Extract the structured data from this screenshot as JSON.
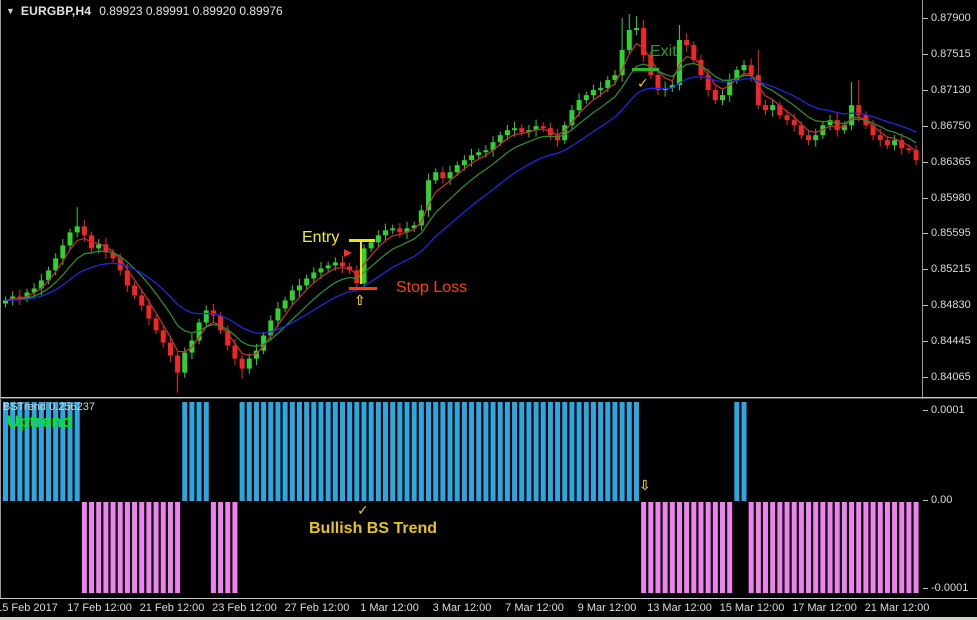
{
  "header": {
    "dropdown_icon": "▼",
    "symbol_period": "EURGBP,H4",
    "quotes": "0.89923 0.89991 0.89920 0.89976"
  },
  "annotations": {
    "entry_label": "Entry",
    "stop_loss_label": "Stop Loss",
    "exit_label": "Exit",
    "check_icon": "✓",
    "buy_arrow_icon": "⇧",
    "sell_arrow_icon": "⇩",
    "bullish_label": "Bullish BS Trend"
  },
  "indicator_panel": {
    "name": "BSTrend",
    "value": "0.256237",
    "trend_label": "Uptrend",
    "scale_ticks": [
      "0.0001",
      "0.00",
      "-0.0001"
    ]
  },
  "chart_data": {
    "type": "candlestick",
    "title": "EURGBP H4 candlestick chart with 3 moving averages and BSTrend histogram",
    "price_ticks": [
      "0.87900",
      "0.87515",
      "0.87130",
      "0.86750",
      "0.86365",
      "0.85980",
      "0.85595",
      "0.85215",
      "0.84830",
      "0.84445",
      "0.84065"
    ],
    "time_labels": [
      "15 Feb 2017",
      "17 Feb 12:00",
      "21 Feb 12:00",
      "23 Feb 12:00",
      "27 Feb 12:00",
      "1 Mar 12:00",
      "3 Mar 12:00",
      "7 Mar 12:00",
      "9 Mar 12:00",
      "13 Mar 12:00",
      "15 Mar 12:00",
      "17 Mar 12:00",
      "21 Mar 12:00"
    ],
    "first_open": 0.8485,
    "closes": [
      0.84883,
      0.84925,
      0.84904,
      0.84968,
      0.85011,
      0.85097,
      0.85204,
      0.85332,
      0.85471,
      0.8561,
      0.85674,
      0.85578,
      0.85439,
      0.85482,
      0.85396,
      0.85332,
      0.85204,
      0.85043,
      0.84936,
      0.84829,
      0.8469,
      0.84562,
      0.84433,
      0.84294,
      0.84112,
      0.84326,
      0.84455,
      0.84647,
      0.84776,
      0.84722,
      0.84562,
      0.84401,
      0.84262,
      0.84155,
      0.84262,
      0.84348,
      0.84508,
      0.84669,
      0.84797,
      0.84883,
      0.8499,
      0.85043,
      0.85118,
      0.85182,
      0.85225,
      0.85257,
      0.85289,
      0.85246,
      0.85204,
      0.85065,
      0.85439,
      0.85503,
      0.85578,
      0.85632,
      0.85653,
      0.8561,
      0.85653,
      0.85685,
      0.85846,
      0.86167,
      0.86252,
      0.86188,
      0.86252,
      0.86327,
      0.86381,
      0.86434,
      0.86466,
      0.86488,
      0.86573,
      0.86648,
      0.86702,
      0.86723,
      0.8668,
      0.86702,
      0.86744,
      0.86723,
      0.86648,
      0.86595,
      0.86755,
      0.86916,
      0.87023,
      0.87076,
      0.8713,
      0.87151,
      0.87237,
      0.8729,
      0.87558,
      0.87772,
      0.87793,
      0.87504,
      0.8729,
      0.8713,
      0.87151,
      0.87183,
      0.87665,
      0.87611,
      0.87451,
      0.8729,
      0.8713,
      0.87023,
      0.87076,
      0.87237,
      0.87344,
      0.87397,
      0.8729,
      0.86969,
      0.86916,
      0.86969,
      0.86862,
      0.86809,
      0.86755,
      0.86648,
      0.86595,
      0.86648,
      0.86755,
      0.86809,
      0.86702,
      0.86755,
      0.86969,
      0.86862,
      0.86755,
      0.86648,
      0.86595,
      0.86541,
      0.86595,
      0.86509,
      0.86488,
      0.86381
    ],
    "wick_overrides": {
      "10": {
        "high": 0.85878
      },
      "24": {
        "low": 0.83898
      },
      "33": {
        "low": 0.84048
      },
      "50": {
        "high": 0.85482,
        "low": 0.8499
      },
      "86": {
        "high": 0.879
      },
      "87": {
        "high": 0.87943
      },
      "88": {
        "high": 0.87921
      },
      "89": {
        "high": 0.87879
      },
      "94": {
        "high": 0.87825
      },
      "105": {
        "high": 0.87558
      },
      "118": {
        "high": 0.87215
      },
      "119": {
        "high": 0.87237
      }
    },
    "moving_averages": [
      {
        "name": "fast",
        "period": 4,
        "color": "#c03030"
      },
      {
        "name": "medium",
        "period": 9,
        "color": "#2e8b2e"
      },
      {
        "name": "slow",
        "period": 18,
        "color": "#2424e0"
      }
    ],
    "colors": {
      "bull": "#2fd32f",
      "bear": "#f32525",
      "up_bar": "#2ca7e0",
      "down_bar": "#ee82ee"
    },
    "bstrend": {
      "type": "bar",
      "value_displayed": "0.256237",
      "ylim": [
        -0.0001,
        0.0001
      ],
      "segments": [
        {
          "from": 0,
          "to": 10,
          "dir": "up"
        },
        {
          "from": 11,
          "to": 24,
          "dir": "down"
        },
        {
          "from": 25,
          "to": 28,
          "dir": "up"
        },
        {
          "from": 29,
          "to": 32,
          "dir": "down"
        },
        {
          "from": 33,
          "to": 88,
          "dir": "up"
        },
        {
          "from": 89,
          "to": 101,
          "dir": "down"
        },
        {
          "from": 102,
          "to": 103,
          "dir": "up"
        },
        {
          "from": 104,
          "to": 127,
          "dir": "down"
        }
      ]
    }
  }
}
